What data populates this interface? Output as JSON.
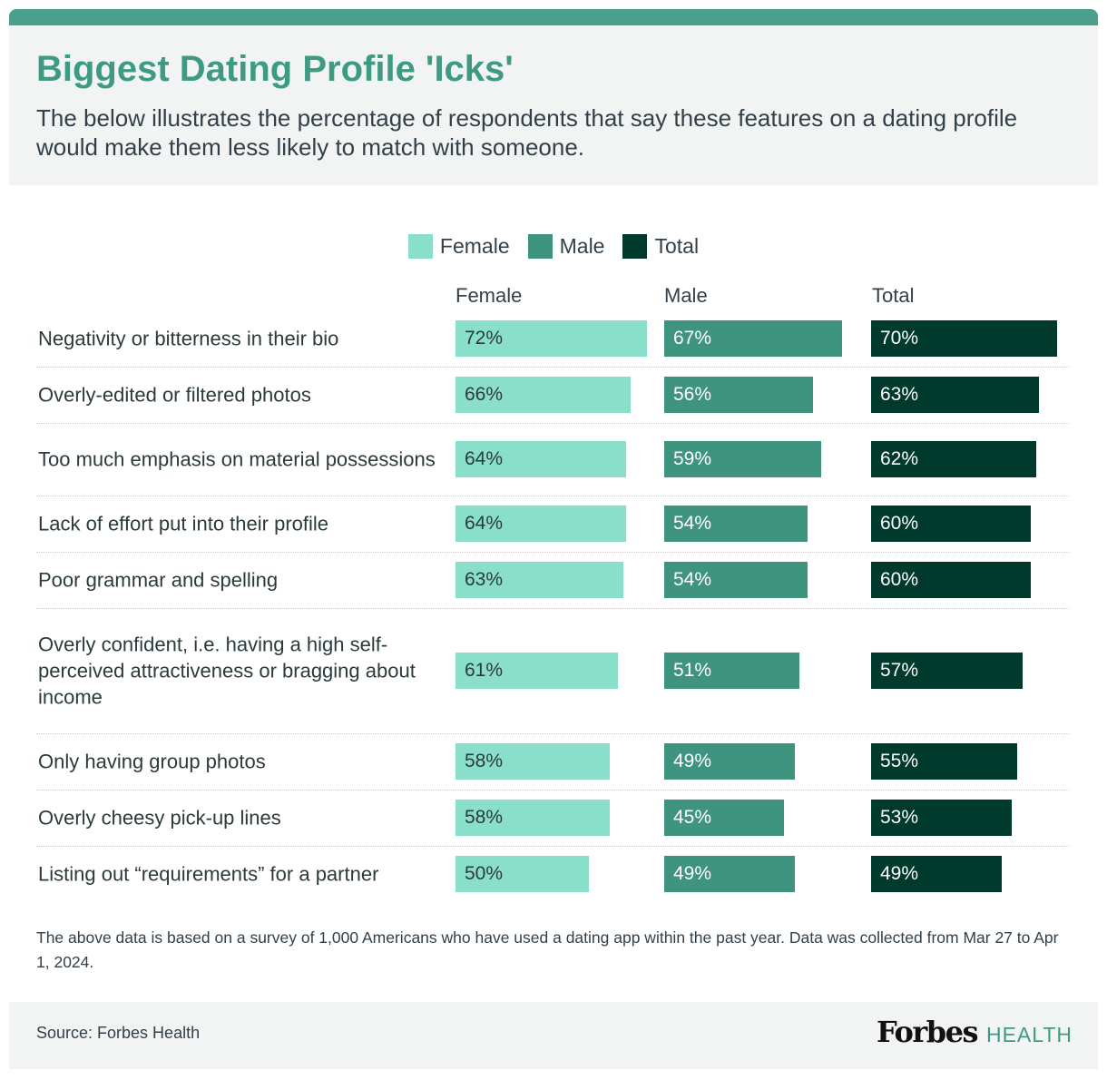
{
  "header": {
    "title": "Biggest Dating Profile 'Icks'",
    "subtitle": "The below illustrates the percentage of respondents that say these features on a dating profile would make them less likely to match with someone."
  },
  "legend": [
    {
      "label": "Female",
      "color": "#8adfca"
    },
    {
      "label": "Male",
      "color": "#3f9480"
    },
    {
      "label": "Total",
      "color": "#003a2c"
    }
  ],
  "columns": [
    "Female",
    "Male",
    "Total"
  ],
  "note": "The above data is based on a survey of 1,000 Americans who have used a dating app within the past year. Data was collected from Mar 27 to Apr 1, 2024.",
  "footer": {
    "source": "Source: Forbes Health",
    "brand_forbes": "Forbes",
    "brand_health": "HEALTH"
  },
  "chart_data": {
    "type": "bar",
    "orientation": "horizontal",
    "categories": [
      "Negativity or bitterness in their bio",
      "Overly-edited or filtered photos",
      "Too much emphasis on material possessions",
      "Lack of effort put into their profile",
      "Poor grammar and spelling",
      "Overly confident, i.e. having a high self-perceived attractiveness or bragging about income",
      "Only having group photos",
      "Overly cheesy pick-up lines",
      "Listing out “requirements” for a partner"
    ],
    "series": [
      {
        "name": "Female",
        "color": "#8adfca",
        "text_color": "#2b3a3a",
        "values": [
          72,
          66,
          64,
          64,
          63,
          61,
          58,
          58,
          50
        ]
      },
      {
        "name": "Male",
        "color": "#3f9480",
        "text_color": "#ffffff",
        "values": [
          67,
          56,
          59,
          54,
          54,
          51,
          49,
          45,
          49
        ]
      },
      {
        "name": "Total",
        "color": "#003a2c",
        "text_color": "#ffffff",
        "values": [
          70,
          63,
          62,
          60,
          60,
          57,
          55,
          53,
          49
        ]
      }
    ],
    "value_suffix": "%",
    "legend_position": "top-center"
  }
}
